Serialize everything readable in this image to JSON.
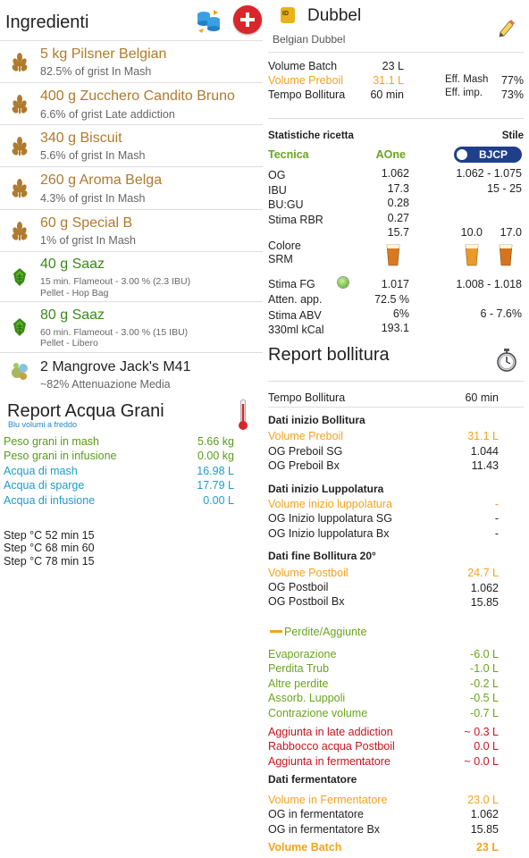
{
  "ingredients": {
    "title": "Ingredienti",
    "items": [
      {
        "type": "malt",
        "name": "5 kg Pilsner Belgian",
        "sub": "82.5% of grist In Mash"
      },
      {
        "type": "malt",
        "name": "400 g Zucchero Candito Bruno",
        "sub": "6.6% of grist Late addiction"
      },
      {
        "type": "malt",
        "name": "340 g Biscuit",
        "sub": "5.6% of grist In Mash"
      },
      {
        "type": "malt",
        "name": "260 g Aroma Belga",
        "sub": "4.3% of grist In Mash"
      },
      {
        "type": "malt",
        "name": "60 g Special B",
        "sub": "1% of grist In Mash"
      },
      {
        "type": "hop",
        "name": "40 g Saaz",
        "sub": "15 min. Flameout - 3.00 %  (2.3 IBU)",
        "sub2": "Pellet - Hop Bag"
      },
      {
        "type": "hop",
        "name": "80 g Saaz",
        "sub": "60 min. Flameout - 3.00 %  (15 IBU)",
        "sub2": "Pellet - Libero"
      },
      {
        "type": "yeast",
        "name": "2 Mangrove Jack's M41",
        "sub": "~82% Attenuazione Media"
      }
    ]
  },
  "water_report": {
    "title": "Report Acqua Grani",
    "subtitle": "Blu volumi a freddo",
    "rows": [
      {
        "label": "Peso grani in mash",
        "value": "5.66 kg",
        "color": "green"
      },
      {
        "label": "Peso grani in infusione",
        "value": "0.00 kg",
        "color": "green"
      },
      {
        "label": "Acqua di mash",
        "value": "16.98 L",
        "color": "blue"
      },
      {
        "label": "Acqua di sparge",
        "value": "17.79 L",
        "color": "blue"
      },
      {
        "label": "Acqua di infusione",
        "value": "0.00 L",
        "color": "blue"
      }
    ],
    "steps": [
      "Step °C 52 min 15",
      "Step °C 68 min 60",
      "Step °C 78 min 15"
    ]
  },
  "recipe": {
    "name": "Dubbel",
    "style": "Belgian Dubbel",
    "volume_batch_label": "Volume Batch",
    "volume_batch": "23 L",
    "volume_preboil_label": "Volume Preboil",
    "volume_preboil": "31.1 L",
    "tempo_bollitura_label": "Tempo Bollitura",
    "tempo_bollitura": "60 min",
    "eff_mash_label": "Eff. Mash",
    "eff_mash": "77%",
    "eff_imp_label": "Eff. imp.",
    "eff_imp": "73%"
  },
  "stats": {
    "title": "Statistiche ricetta",
    "stile_label": "Stile",
    "tecnica_label": "Tecnica",
    "tecnica_value": "AOne",
    "bjcp_label": "BJCP",
    "og_label": "OG",
    "og": "1.062",
    "og_range": "1.062 - 1.075",
    "ibu_label": "IBU",
    "ibu": "17.3",
    "ibu_range": "15 - 25",
    "bugu_label": "BU:GU",
    "bugu": "0.28",
    "rbr_label": "Stima RBR",
    "rbr": "0.27",
    "colore_label": "Colore",
    "srm_label": "SRM",
    "srm": "15.7",
    "srm_min": "10.0",
    "srm_max": "17.0",
    "fg_label": "Stima FG",
    "fg": "1.017",
    "fg_range": "1.008 - 1.018",
    "atten_label": "Atten. app.",
    "atten": "72.5 %",
    "abv_label": "Stima ABV",
    "abv": "6%",
    "abv_range": "6 - 7.6%",
    "kcal_label": "330ml kCal",
    "kcal": "193.1"
  },
  "boil_report": {
    "title": "Report bollitura",
    "tempo_label": "Tempo Bollitura",
    "tempo": "60 min",
    "sec_inizio": "Dati inizio Bollitura",
    "vol_preboil_label": "Volume Preboil",
    "vol_preboil": "31.1 L",
    "og_preboil_sg_label": "OG Preboil SG",
    "og_preboil_sg": "1.044",
    "og_preboil_bx_label": "OG Preboil Bx",
    "og_preboil_bx": "11.43",
    "sec_lupp": "Dati inizio Luppolatura",
    "vol_lupp_label": "Volume inizio luppolatura",
    "vol_lupp": "-",
    "og_lupp_sg_label": "OG Inizio luppolatura SG",
    "og_lupp_sg": "-",
    "og_lupp_bx_label": "OG Inizio luppolatura Bx",
    "og_lupp_bx": "-",
    "sec_fine": "Dati fine Bollitura 20°",
    "vol_postboil_label": "Volume Postboil",
    "vol_postboil": "24.7 L",
    "og_postboil_label": "OG Postboil",
    "og_postboil": "1.062",
    "og_postboil_bx_label": "OG Postboil Bx",
    "og_postboil_bx": "15.85",
    "perdite_label": "Perdite/Aggiunte",
    "losses": [
      {
        "label": "Evaporazione",
        "value": "-6.0 L"
      },
      {
        "label": "Perdita Trub",
        "value": "-1.0 L"
      },
      {
        "label": "Altre perdite",
        "value": "-0.2 L"
      },
      {
        "label": "Assorb. Luppoli",
        "value": "-0.5 L"
      },
      {
        "label": "Contrazione volume",
        "value": "-0.7 L"
      }
    ],
    "additions": [
      {
        "label": "Aggiunta in late addiction",
        "value": "~ 0.3 L"
      },
      {
        "label": "Rabbocco acqua Postboil",
        "value": "0.0 L"
      },
      {
        "label": "Aggiunta in fermentatore",
        "value": "~ 0.0 L"
      }
    ],
    "sec_ferm": "Dati fermentatore",
    "vol_ferm_label": "Volume in Fermentatore",
    "vol_ferm": "23.0 L",
    "og_ferm_label": "OG in fermentatore",
    "og_ferm": "1.062",
    "og_ferm_bx_label": "OG in fermentatore Bx",
    "og_ferm_bx": "15.85",
    "vol_batch_label": "Volume Batch",
    "vol_batch": "23 L"
  }
}
